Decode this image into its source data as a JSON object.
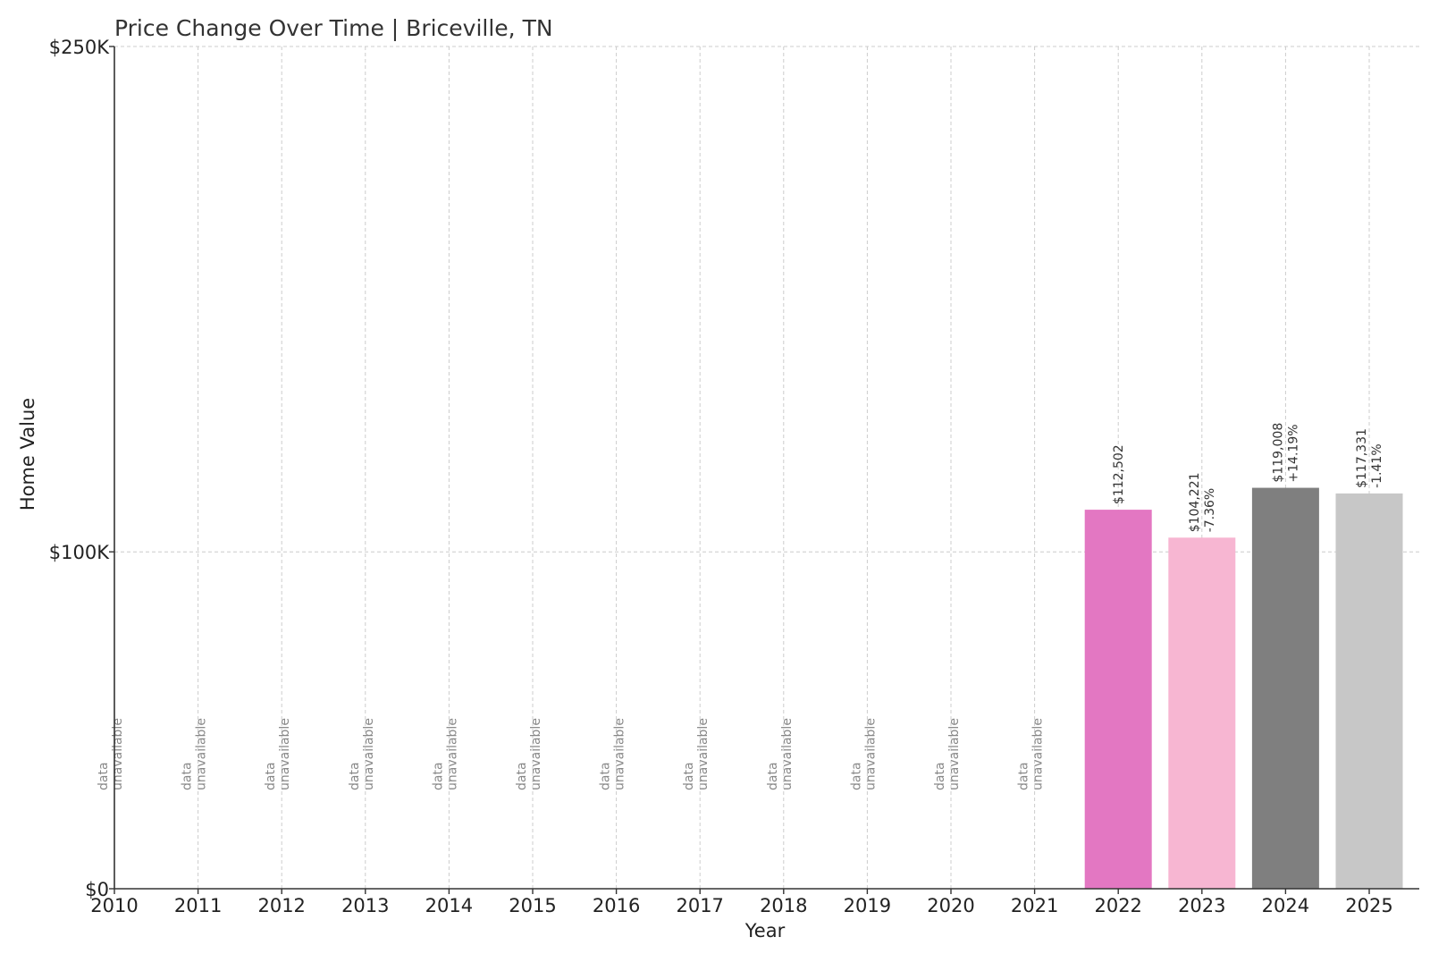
{
  "chart_data": {
    "type": "bar",
    "title": "Price Change Over Time | Briceville, TN",
    "xlabel": "Year",
    "ylabel": "Home Value",
    "ylim": [
      0,
      250000
    ],
    "yticks": [
      {
        "value": 0,
        "label": "$0"
      },
      {
        "value": 100000,
        "label": "$100K"
      },
      {
        "value": 250000,
        "label": "$250K"
      }
    ],
    "grid": true,
    "unavailable_label": [
      "data",
      "unavailable"
    ],
    "categories": [
      "2010",
      "2011",
      "2012",
      "2013",
      "2014",
      "2015",
      "2016",
      "2017",
      "2018",
      "2019",
      "2020",
      "2021",
      "2022",
      "2023",
      "2024",
      "2025"
    ],
    "bars": [
      {
        "year": "2010",
        "value": null
      },
      {
        "year": "2011",
        "value": null
      },
      {
        "year": "2012",
        "value": null
      },
      {
        "year": "2013",
        "value": null
      },
      {
        "year": "2014",
        "value": null
      },
      {
        "year": "2015",
        "value": null
      },
      {
        "year": "2016",
        "value": null
      },
      {
        "year": "2017",
        "value": null
      },
      {
        "year": "2018",
        "value": null
      },
      {
        "year": "2019",
        "value": null
      },
      {
        "year": "2020",
        "value": null
      },
      {
        "year": "2021",
        "value": null
      },
      {
        "year": "2022",
        "value": 112502,
        "value_label": "$112,502",
        "change_label": "",
        "color": "#e377c2"
      },
      {
        "year": "2023",
        "value": 104221,
        "value_label": "$104,221",
        "change_label": "-7.36%",
        "color": "#f7b6d2"
      },
      {
        "year": "2024",
        "value": 119008,
        "value_label": "$119,008",
        "change_label": "+14.19%",
        "color": "#7f7f7f"
      },
      {
        "year": "2025",
        "value": 117331,
        "value_label": "$117,331",
        "change_label": "-1.41%",
        "color": "#c7c7c7"
      }
    ]
  }
}
